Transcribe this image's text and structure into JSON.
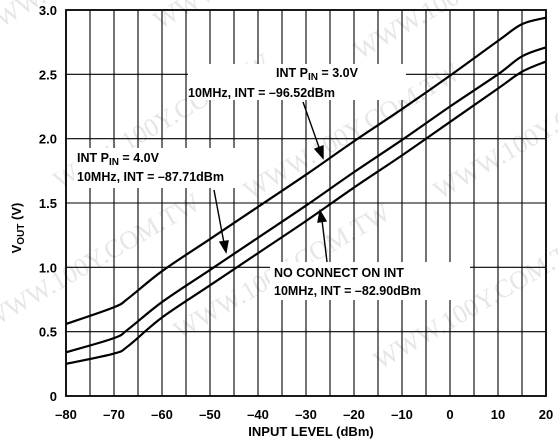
{
  "chart_data": {
    "type": "line",
    "xlabel": "INPUT LEVEL (dBm)",
    "ylabel": {
      "main": "V",
      "sub": "OUT",
      "tail": " (V)"
    },
    "xlim": [
      -80,
      20
    ],
    "ylim": [
      0,
      3.0
    ],
    "xticks": [
      -80,
      -70,
      -60,
      -50,
      -40,
      -30,
      -20,
      -10,
      0,
      10,
      20
    ],
    "xtick_labels": [
      "–80",
      "–70",
      "–60",
      "–50",
      "–40",
      "–30",
      "–20",
      "–10",
      "0",
      "10",
      "20"
    ],
    "yticks": [
      0,
      0.5,
      1.0,
      1.5,
      2.0,
      2.5,
      3.0
    ],
    "ytick_labels": [
      "0",
      "0.5",
      "1.0",
      "1.5",
      "2.0",
      "2.5",
      "3.0"
    ],
    "grid": true,
    "series": [
      {
        "x": [
          -80,
          -70,
          -67,
          -60,
          -50,
          -40,
          -30,
          -20,
          -10,
          0,
          10,
          15,
          20
        ],
        "y": [
          0.56,
          0.69,
          0.76,
          0.97,
          1.22,
          1.47,
          1.72,
          1.98,
          2.23,
          2.49,
          2.76,
          2.89,
          2.94
        ]
      },
      {
        "x": [
          -80,
          -70,
          -67,
          -60,
          -50,
          -40,
          -30,
          -20,
          -10,
          0,
          10,
          15,
          20
        ],
        "y": [
          0.34,
          0.45,
          0.52,
          0.73,
          0.98,
          1.23,
          1.48,
          1.74,
          1.99,
          2.25,
          2.5,
          2.64,
          2.71
        ]
      },
      {
        "x": [
          -80,
          -70,
          -67,
          -60,
          -50,
          -40,
          -30,
          -20,
          -10,
          0,
          10,
          15,
          20
        ],
        "y": [
          0.25,
          0.33,
          0.39,
          0.61,
          0.86,
          1.11,
          1.36,
          1.62,
          1.87,
          2.13,
          2.39,
          2.52,
          2.6
        ]
      }
    ],
    "annotations": [
      {
        "line1_main": "INT P",
        "line1_sub": "IN",
        "line1_tail": " = 3.0V",
        "line2": "10MHz, INT = –96.52dBm"
      },
      {
        "line1_main": "INT P",
        "line1_sub": "IN",
        "line1_tail": " = 4.0V",
        "line2": "10MHz, INT = –87.71dBm"
      },
      {
        "line1": "NO CONNECT ON INT",
        "line2": "10MHz, INT = –82.90dBm"
      }
    ],
    "watermark": "WWW.100Y.COM.TW"
  }
}
